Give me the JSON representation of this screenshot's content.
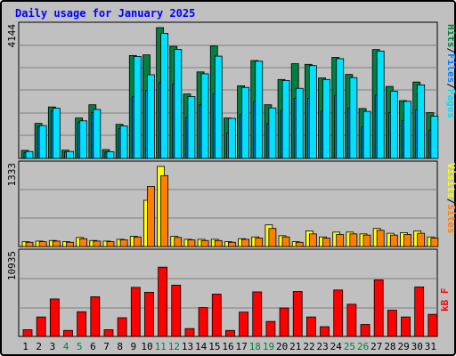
{
  "title": "Daily usage for January 2025",
  "colors": {
    "hits": "#008040",
    "files": "#0080ff",
    "pages": "#00e0ff",
    "visits": "#ffff00",
    "sites": "#ff8000",
    "kbytes": "#ff0000",
    "weekend_day": "#008040",
    "weekday": "#000000"
  },
  "chart_data": [
    {
      "type": "bar",
      "axis_max_label": "4144",
      "ylim": [
        0,
        4144
      ],
      "series": [
        {
          "name": "Hits",
          "values": [
            255,
            1110,
            1630,
            260,
            1280,
            1700,
            280,
            1080,
            3260,
            3280,
            4144,
            3550,
            2040,
            2740,
            3560,
            1280,
            2300,
            3100,
            1700,
            2500,
            3000,
            2980,
            2550,
            3200,
            2660,
            1580,
            3450,
            2280,
            1830,
            2420,
            1450
          ]
        },
        {
          "name": "Files",
          "values": [
            180,
            1000,
            1500,
            200,
            1150,
            1450,
            200,
            950,
            1950,
            2150,
            2400,
            2350,
            1300,
            1700,
            2050,
            800,
            1400,
            1800,
            1100,
            1500,
            1900,
            1900,
            1500,
            2000,
            1600,
            1000,
            2000,
            1450,
            1200,
            1550,
            900
          ]
        },
        {
          "name": "Pages",
          "values": [
            220,
            1040,
            1590,
            220,
            1190,
            1550,
            210,
            1030,
            3230,
            2650,
            3960,
            3450,
            1960,
            2680,
            3240,
            1270,
            2250,
            3080,
            1600,
            2470,
            2220,
            2940,
            2500,
            3160,
            2560,
            1490,
            3400,
            2130,
            1810,
            2330,
            1340
          ]
        }
      ],
      "right_label": [
        "Pages",
        "Files",
        "Hits"
      ]
    },
    {
      "type": "bar",
      "axis_max_label": "1333",
      "ylim": [
        0,
        1333
      ],
      "series": [
        {
          "name": "Visits",
          "values": [
            80,
            90,
            100,
            80,
            150,
            100,
            90,
            120,
            170,
            770,
            1333,
            170,
            120,
            120,
            120,
            80,
            130,
            160,
            360,
            180,
            80,
            260,
            160,
            240,
            240,
            210,
            300,
            220,
            230,
            260,
            160
          ]
        },
        {
          "name": "Sites",
          "values": [
            70,
            80,
            90,
            70,
            130,
            90,
            80,
            110,
            160,
            1000,
            1180,
            150,
            110,
            100,
            100,
            70,
            120,
            140,
            300,
            160,
            70,
            210,
            140,
            200,
            210,
            190,
            270,
            190,
            200,
            220,
            140
          ]
        }
      ],
      "right_label": [
        "Sites",
        "Visits"
      ]
    },
    {
      "type": "bar",
      "axis_max_label": "10935",
      "ylim": [
        0,
        10935
      ],
      "series": [
        {
          "name": "kB F",
          "values": [
            900,
            2600,
            5000,
            800,
            3300,
            5300,
            900,
            2500,
            6550,
            5900,
            9250,
            6850,
            1050,
            3850,
            5650,
            800,
            3250,
            5950,
            2000,
            3800,
            6000,
            2600,
            1300,
            6200,
            4300,
            1600,
            7550,
            3500,
            2600,
            6600,
            2950
          ]
        }
      ],
      "right_label": [
        "kB F"
      ]
    }
  ],
  "days": [
    "1",
    "2",
    "3",
    "4",
    "5",
    "6",
    "7",
    "8",
    "9",
    "10",
    "11",
    "12",
    "13",
    "14",
    "15",
    "16",
    "17",
    "18",
    "19",
    "20",
    "21",
    "22",
    "23",
    "24",
    "25",
    "26",
    "27",
    "28",
    "29",
    "30",
    "31"
  ],
  "weekend_days": [
    "4",
    "5",
    "11",
    "12",
    "18",
    "19",
    "25",
    "26"
  ]
}
